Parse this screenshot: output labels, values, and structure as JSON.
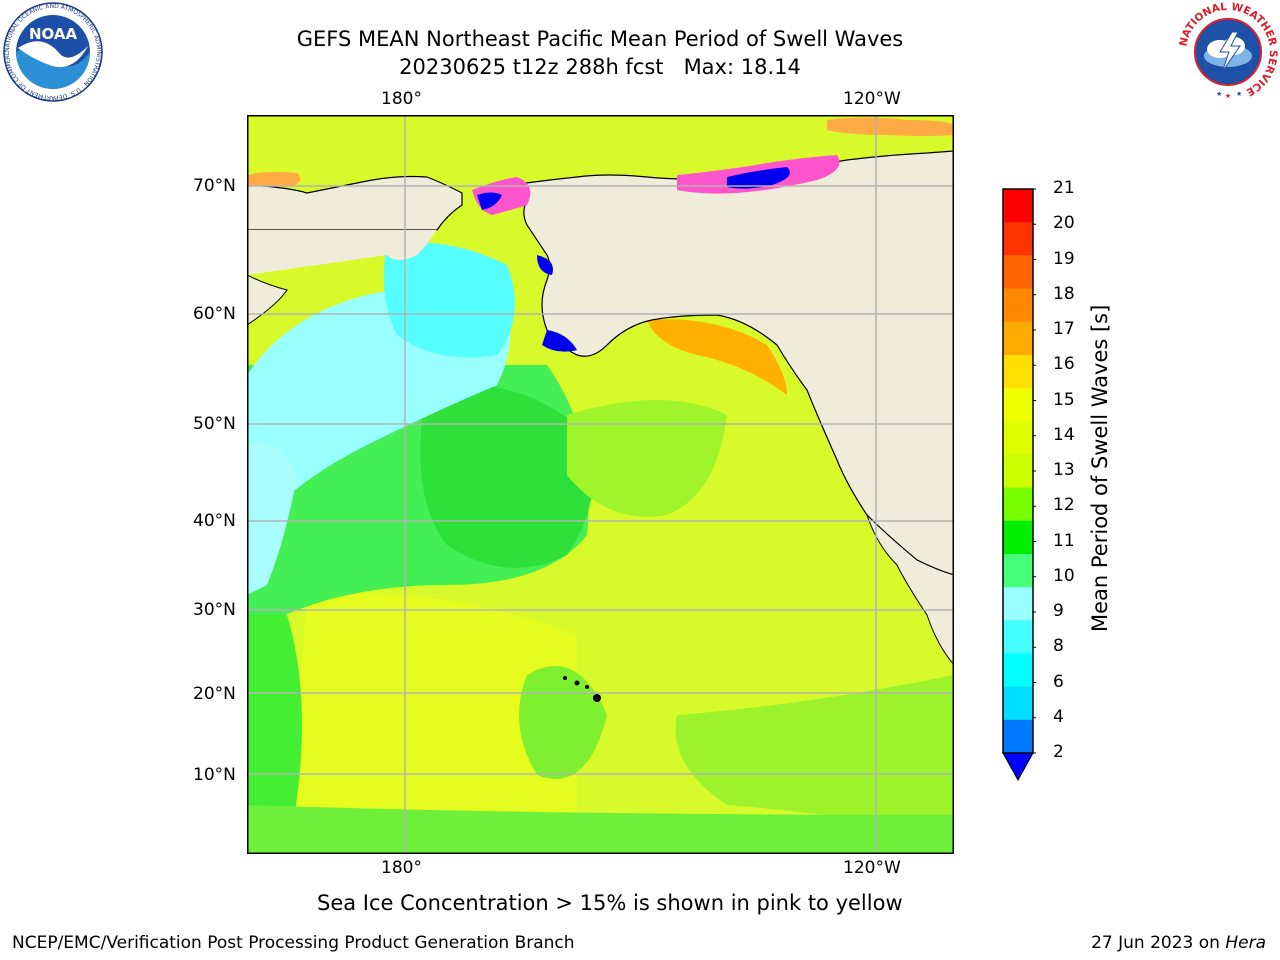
{
  "header": {
    "title_line1": "GEFS MEAN Northeast Pacific Mean Period of Swell Waves",
    "title_line2": "20230625 t12z 288h fcst   Max: 18.14"
  },
  "map": {
    "lon_labels_top": [
      "180°",
      "120°W"
    ],
    "lon_labels_bottom": [
      "180°",
      "120°W"
    ],
    "lat_labels": [
      "70°N",
      "60°N",
      "50°N",
      "40°N",
      "30°N",
      "20°N",
      "10°N"
    ]
  },
  "colorbar": {
    "title": "Mean Period of Swell Waves [s]",
    "levels": [
      "21",
      "20",
      "19",
      "18",
      "17",
      "16",
      "15",
      "14",
      "13",
      "12",
      "11",
      "10",
      "9",
      "8",
      "6",
      "4",
      "2"
    ],
    "colors": [
      "#ff0000",
      "#ff3300",
      "#ff6600",
      "#ff8800",
      "#ffaa00",
      "#ffe000",
      "#eeff00",
      "#ddff00",
      "#ccff00",
      "#77ff00",
      "#00ee00",
      "#44ff77",
      "#99ffff",
      "#44ffff",
      "#00ffff",
      "#00ddff",
      "#0077ff"
    ],
    "extend_color": "#0000ff"
  },
  "palette": {
    "land": "#efedda",
    "grid": "#b3b3b3",
    "ice_pink": "#ff55cc",
    "ice_orange": "#ffaa44",
    "ice_blue": "#0000ee"
  },
  "note": "Sea Ice Concentration > 15% is shown in pink to yellow",
  "footer": {
    "left": "NCEP/EMC/Verification Post Processing Product Generation Branch",
    "right_prefix": "27 Jun 2023 on ",
    "right_host": "Hera"
  },
  "logos": {
    "noaa_text": "NOAA",
    "noaa_ring": "NATIONAL OCEANIC AND ATMOSPHERIC ADMINISTRATION · U.S. DEPARTMENT OF COMMERCE",
    "nws_ring": "NATIONAL WEATHER SERVICE"
  }
}
